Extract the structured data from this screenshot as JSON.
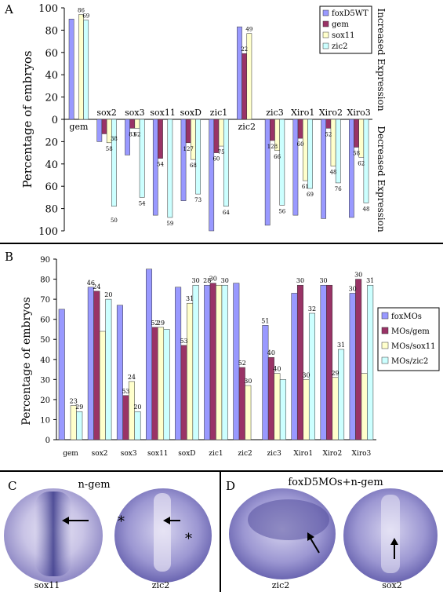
{
  "figure": {
    "panel_a": {
      "letter": "A",
      "ylabel": "Percentage of embryos",
      "side_top": "Increased Expression",
      "side_bottom": "Decreased Expression"
    },
    "panel_b": {
      "letter": "B",
      "ylabel": "Percentage of embryos"
    },
    "panel_c": {
      "letter": "C",
      "title": "n-gem",
      "captions": [
        "sox11",
        "zic2"
      ]
    },
    "panel_d": {
      "letter": "D",
      "title": "foxD5MOs+n-gem",
      "captions": [
        "zic2",
        "sox2"
      ]
    }
  },
  "colors": {
    "series1": "#9999ff",
    "series2": "#993366",
    "series3": "#ffffcc",
    "series4": "#ccffff",
    "embryo": "#9c96cc",
    "embryo_dark": "#3e3f8e"
  },
  "chart_data": [
    {
      "type": "bar",
      "categories": [
        "gem",
        "sox2",
        "sox3",
        "sox11",
        "soxD",
        "zic1",
        "zic2",
        "zic3",
        "Xiro1",
        "Xiro2",
        "Xiro3"
      ],
      "ylabel": "Percentage of embryos",
      "yticks": [
        "100",
        "80",
        "60",
        "40",
        "20",
        "0",
        "20",
        "40",
        "60",
        "80",
        "100"
      ],
      "ylim_increased": [
        0,
        100
      ],
      "ylim_decreased": [
        0,
        100
      ],
      "grid": false,
      "legend_position": "top-right",
      "series": [
        {
          "name": "foxD5WT",
          "increased": [
            90,
            0,
            0,
            0,
            0,
            0,
            83,
            0,
            0,
            0,
            0
          ],
          "decreased": [
            0,
            20,
            32,
            86,
            73,
            100,
            0,
            95,
            86,
            89,
            88
          ]
        },
        {
          "name": "gem",
          "increased": [
            0,
            0,
            0,
            0,
            0,
            0,
            59,
            0,
            0,
            0,
            0
          ],
          "decreased": [
            0,
            13,
            8,
            35,
            21,
            30,
            0,
            19,
            17,
            8,
            25
          ]
        },
        {
          "name": "sox11",
          "increased": [
            94,
            0,
            0,
            0,
            0,
            0,
            77,
            0,
            0,
            0,
            0
          ],
          "decreased": [
            0,
            21,
            8,
            0,
            36,
            24,
            0,
            28,
            55,
            42,
            34
          ]
        },
        {
          "name": "zic2",
          "increased": [
            89,
            0,
            0,
            0,
            0,
            0,
            0,
            0,
            0,
            0,
            0
          ],
          "decreased": [
            0,
            78,
            70,
            88,
            67,
            78,
            0,
            77,
            62,
            57,
            75
          ]
        }
      ],
      "data_labels": [
        {
          "category": "gem",
          "series": "sox11",
          "text": "86"
        },
        {
          "category": "gem",
          "series": "zic2",
          "text": "69"
        },
        {
          "category": "zic2",
          "series": "gem",
          "text": "22"
        },
        {
          "category": "zic2",
          "series": "sox11",
          "text": "49"
        },
        {
          "category": "sox2",
          "series": "sox11",
          "text": "58"
        },
        {
          "category": "sox2",
          "series": "zic2",
          "text": "38"
        },
        {
          "category": "sox2",
          "series": "zic2",
          "text": "50"
        },
        {
          "category": "sox3",
          "series": "gem",
          "text": "83"
        },
        {
          "category": "sox3",
          "series": "sox11",
          "text": "62"
        },
        {
          "category": "sox3",
          "series": "zic2",
          "text": "54"
        },
        {
          "category": "sox11",
          "series": "gem",
          "text": "54"
        },
        {
          "category": "sox11",
          "series": "zic2",
          "text": "59"
        },
        {
          "category": "soxD",
          "series": "gem",
          "text": "127"
        },
        {
          "category": "soxD",
          "series": "sox11",
          "text": "68"
        },
        {
          "category": "soxD",
          "series": "zic2",
          "text": "73"
        },
        {
          "category": "zic1",
          "series": "gem",
          "text": "60"
        },
        {
          "category": "zic1",
          "series": "sox11",
          "text": "75"
        },
        {
          "category": "zic1",
          "series": "zic2",
          "text": "64"
        },
        {
          "category": "zic3",
          "series": "gem",
          "text": "128"
        },
        {
          "category": "zic3",
          "series": "sox11",
          "text": "66"
        },
        {
          "category": "zic3",
          "series": "zic2",
          "text": "56"
        },
        {
          "category": "Xiro1",
          "series": "gem",
          "text": "60"
        },
        {
          "category": "Xiro1",
          "series": "sox11",
          "text": "61"
        },
        {
          "category": "Xiro1",
          "series": "zic2",
          "text": "69"
        },
        {
          "category": "Xiro2",
          "series": "gem",
          "text": "52"
        },
        {
          "category": "Xiro2",
          "series": "sox11",
          "text": "48"
        },
        {
          "category": "Xiro2",
          "series": "zic2",
          "text": "76"
        },
        {
          "category": "Xiro3",
          "series": "gem",
          "text": "58"
        },
        {
          "category": "Xiro3",
          "series": "sox11",
          "text": "62"
        },
        {
          "category": "Xiro3",
          "series": "zic2",
          "text": "48"
        }
      ]
    },
    {
      "type": "bar",
      "categories": [
        "gem",
        "sox2",
        "sox3",
        "sox11",
        "soxD",
        "zic1",
        "zic2",
        "zic3",
        "Xiro1",
        "Xiro2",
        "Xiro3"
      ],
      "ylabel": "Percentage of embryos",
      "ylim": [
        0,
        90
      ],
      "yticks": [
        0,
        10,
        20,
        30,
        40,
        50,
        60,
        70,
        80,
        90
      ],
      "grid": false,
      "legend_position": "right",
      "series": [
        {
          "name": "foxMOs",
          "values": [
            65,
            76,
            67,
            85,
            76,
            77,
            78,
            57,
            73,
            77,
            73
          ]
        },
        {
          "name": "MOs/gem",
          "values": [
            0,
            74,
            22,
            56,
            47,
            78,
            36,
            41,
            77,
            77,
            80
          ]
        },
        {
          "name": "MOs/sox11",
          "values": [
            17,
            54,
            29,
            56,
            68,
            77,
            27,
            33,
            30,
            31,
            33
          ]
        },
        {
          "name": "MOs/zic2",
          "values": [
            14,
            70,
            14,
            55,
            77,
            77,
            0,
            30,
            63,
            45,
            77
          ]
        }
      ],
      "data_labels": [
        {
          "category": "gem",
          "series": "MOs/sox11",
          "text": "23",
          "star": true
        },
        {
          "category": "gem",
          "series": "MOs/zic2",
          "text": "29",
          "star": true
        },
        {
          "category": "sox2",
          "series": "foxMOs",
          "text": "46"
        },
        {
          "category": "sox2",
          "series": "MOs/gem",
          "text": "24"
        },
        {
          "category": "sox2",
          "series": "MOs/zic2",
          "text": "20"
        },
        {
          "category": "sox3",
          "series": "MOs/gem",
          "text": "53",
          "star": true
        },
        {
          "category": "sox3",
          "series": "MOs/sox11",
          "text": "24",
          "star": true
        },
        {
          "category": "sox3",
          "series": "MOs/zic2",
          "text": "20",
          "star": true
        },
        {
          "category": "sox11",
          "series": "MOs/gem",
          "text": "52",
          "star": true
        },
        {
          "category": "sox11",
          "series": "MOs/sox11",
          "text": "29",
          "star": true
        },
        {
          "category": "soxD",
          "series": "MOs/gem",
          "text": "53",
          "star": true
        },
        {
          "category": "soxD",
          "series": "MOs/sox11",
          "text": "31"
        },
        {
          "category": "soxD",
          "series": "MOs/zic2",
          "text": "30"
        },
        {
          "category": "zic1",
          "series": "foxMOs",
          "text": "28"
        },
        {
          "category": "zic1",
          "series": "MOs/gem",
          "text": "30"
        },
        {
          "category": "zic1",
          "series": "MOs/zic2",
          "text": "30"
        },
        {
          "category": "zic2",
          "series": "MOs/gem",
          "text": "52",
          "star": true
        },
        {
          "category": "zic2",
          "series": "MOs/sox11",
          "text": "30",
          "star": true
        },
        {
          "category": "zic3",
          "series": "foxMOs",
          "text": "51"
        },
        {
          "category": "zic3",
          "series": "MOs/gem",
          "text": "40"
        },
        {
          "category": "zic3",
          "series": "MOs/sox11",
          "text": "40",
          "star": true
        },
        {
          "category": "Xiro1",
          "series": "MOs/gem",
          "text": "30"
        },
        {
          "category": "Xiro1",
          "series": "MOs/sox11",
          "text": "30",
          "star": true
        },
        {
          "category": "Xiro1",
          "series": "MOs/zic2",
          "text": "32"
        },
        {
          "category": "Xiro2",
          "series": "foxMOs",
          "text": "30"
        },
        {
          "category": "Xiro2",
          "series": "MOs/sox11",
          "text": "29",
          "star": true
        },
        {
          "category": "Xiro2",
          "series": "MOs/zic2",
          "text": "31",
          "star": true
        },
        {
          "category": "Xiro3",
          "series": "foxMOs",
          "text": "30"
        },
        {
          "category": "Xiro3",
          "series": "MOs/gem",
          "text": "30",
          "star": true
        },
        {
          "category": "Xiro3",
          "series": "MOs/zic2",
          "text": "31"
        }
      ]
    }
  ]
}
